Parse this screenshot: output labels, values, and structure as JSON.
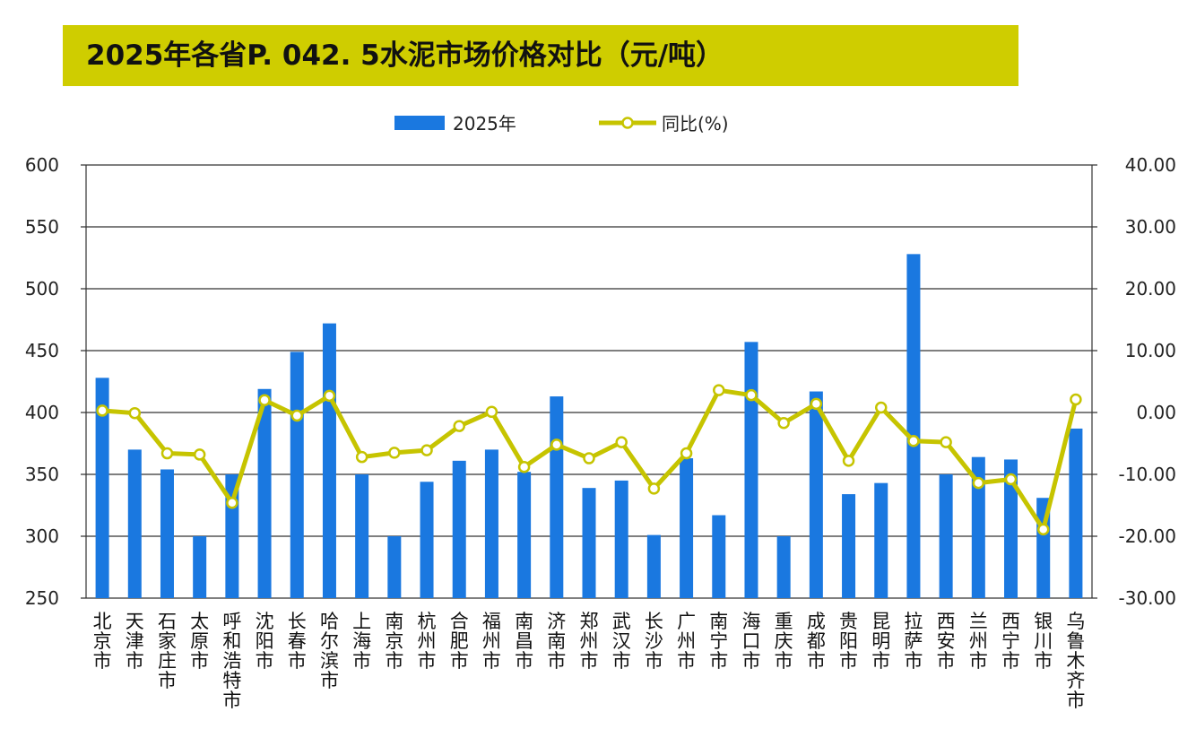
{
  "title": "2025年各省P. 042. 5水泥市场价格对比（元/吨）",
  "colors": {
    "title_bg": "#cfcd00",
    "bar": "#1a78e0",
    "line": "#c6c400",
    "marker_fill": "#ffffff",
    "grid": "#333333"
  },
  "chart_data": {
    "type": "bar",
    "title": "2025年各省P. 042. 5水泥市场价格对比（元/吨）",
    "categories": [
      "北京市",
      "天津市",
      "石家庄市",
      "太原市",
      "呼和浩特市",
      "沈阳市",
      "长春市",
      "哈尔滨市",
      "上海市",
      "南京市",
      "杭州市",
      "合肥市",
      "福州市",
      "南昌市",
      "济南市",
      "郑州市",
      "武汉市",
      "长沙市",
      "广州市",
      "南宁市",
      "海口市",
      "重庆市",
      "成都市",
      "贵阳市",
      "昆明市",
      "拉萨市",
      "西安市",
      "兰州市",
      "西宁市",
      "银川市",
      "乌鲁木齐市"
    ],
    "series": [
      {
        "name": "2025年",
        "type": "bar",
        "axis": "left",
        "values": [
          428,
          370,
          354,
          300,
          350,
          419,
          449,
          472,
          350,
          300,
          344,
          361,
          370,
          352,
          413,
          339,
          345,
          301,
          363,
          317,
          457,
          300,
          417,
          334,
          343,
          528,
          350,
          364,
          362,
          331,
          387
        ]
      },
      {
        "name": "同比(%)",
        "type": "line",
        "axis": "right",
        "values": [
          0.3,
          -0.1,
          -6.6,
          -6.8,
          -14.6,
          2.0,
          -0.5,
          2.7,
          -7.2,
          -6.5,
          -6.1,
          -2.2,
          0.1,
          -8.8,
          -5.2,
          -7.4,
          -4.8,
          -12.3,
          -6.6,
          3.6,
          2.8,
          -1.7,
          1.4,
          -7.8,
          0.8,
          -4.6,
          -4.8,
          -11.4,
          -10.8,
          -18.9,
          2.1
        ]
      }
    ],
    "y_left": {
      "min": 250,
      "max": 600,
      "ticks": [
        "600",
        "550",
        "500",
        "450",
        "400",
        "350",
        "300",
        "250"
      ]
    },
    "y_right": {
      "min": -30,
      "max": 40,
      "ticks": [
        "40.00",
        "30.00",
        "20.00",
        "10.00",
        "0.00",
        "-10.00",
        "-20.00",
        "-30.00"
      ]
    },
    "grid": true,
    "legend": {
      "position": "top-center",
      "items": [
        "2025年",
        "同比(%)"
      ]
    }
  }
}
